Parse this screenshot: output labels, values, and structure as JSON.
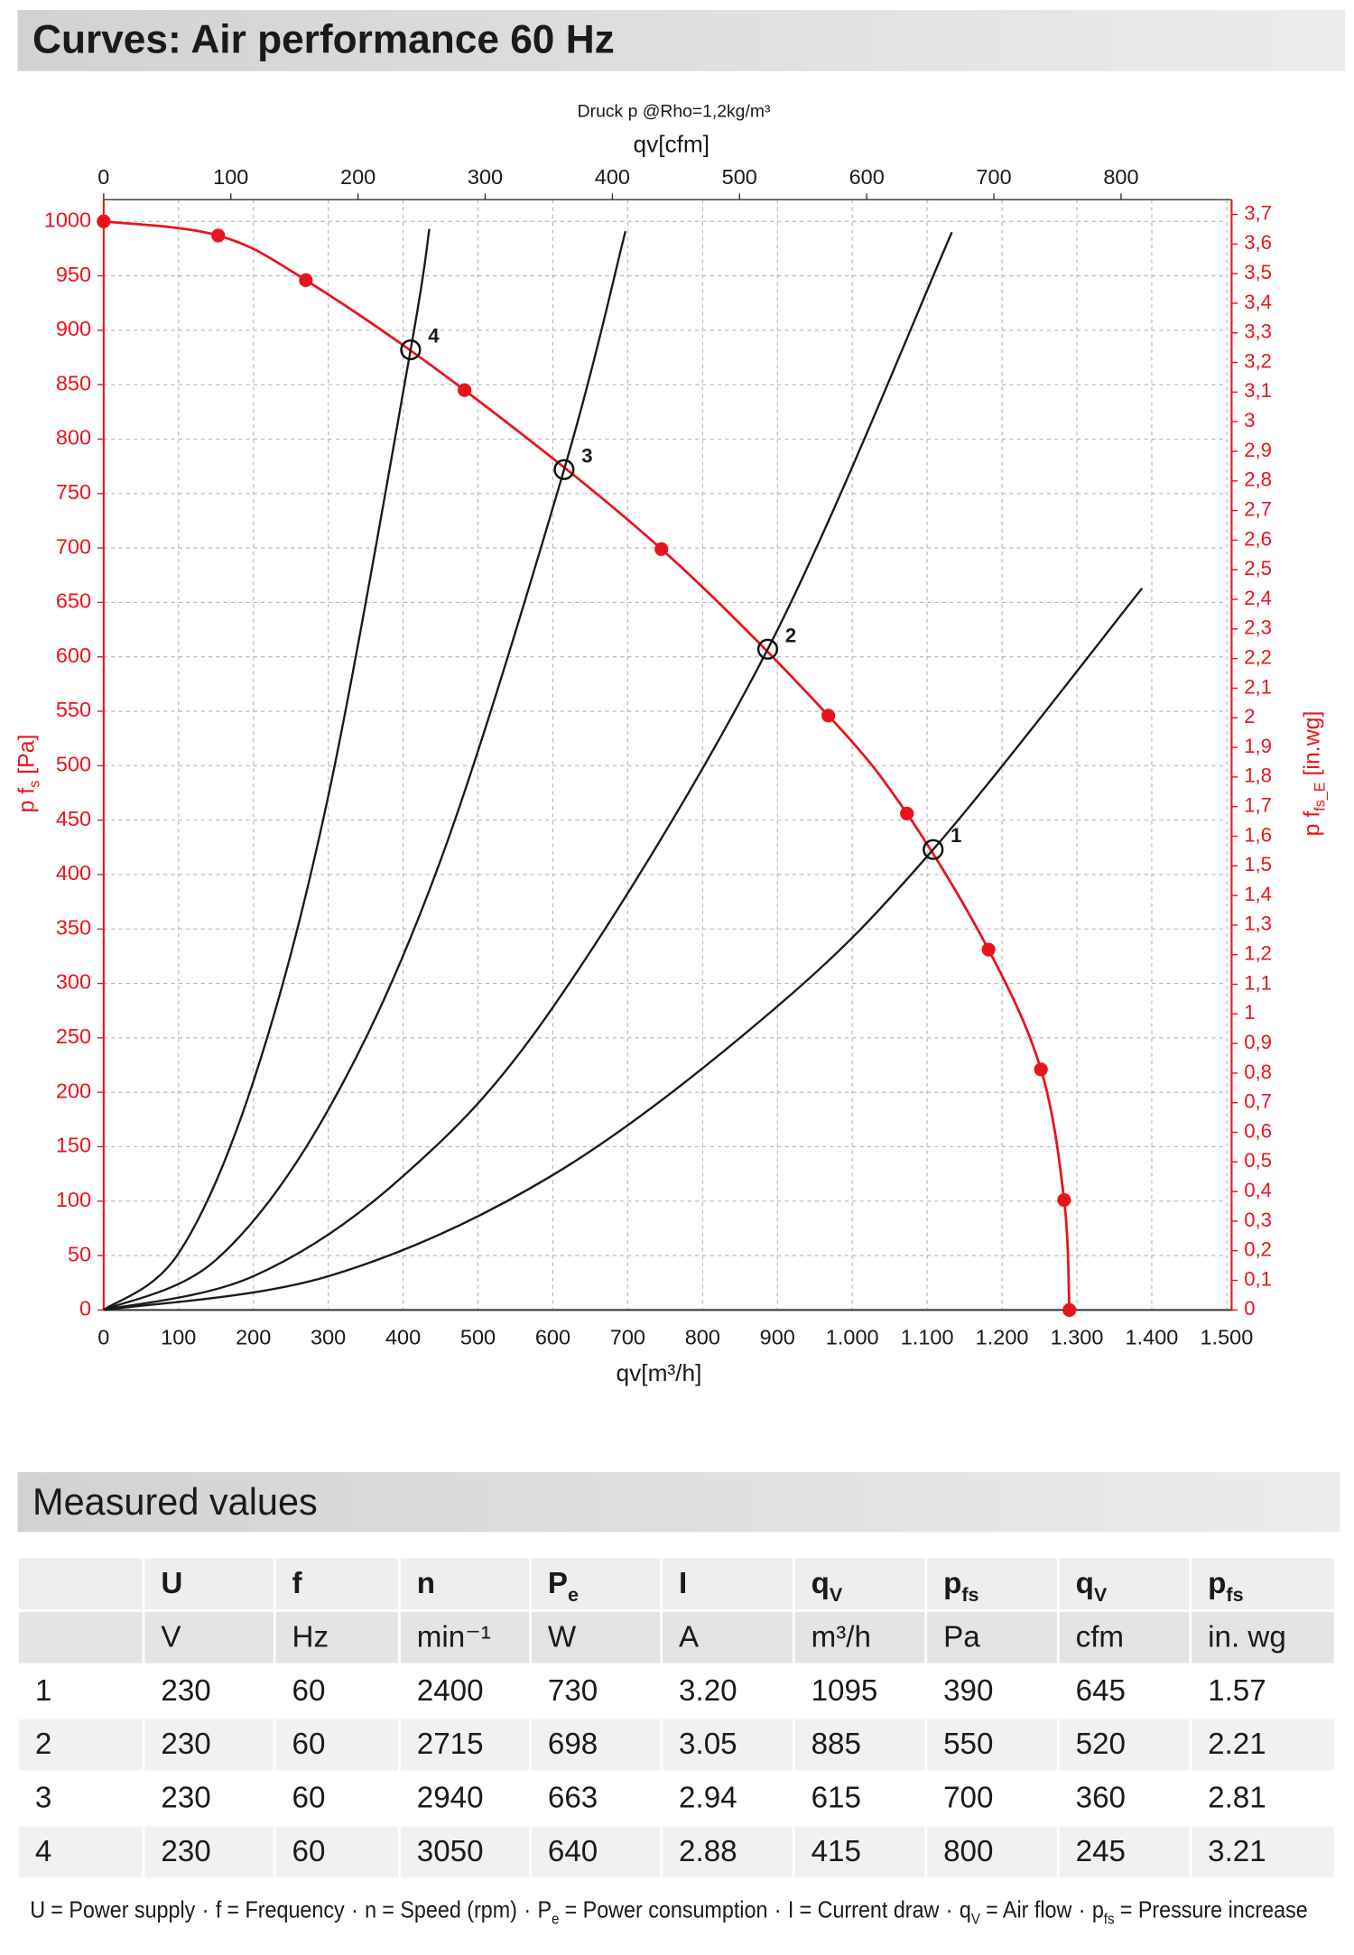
{
  "header": {
    "title": "Curves: Air performance 60 Hz"
  },
  "chart_data": {
    "type": "line",
    "top_note": "Druck  p @Rho=1,2kg/m³",
    "x_label": "qv[m³/h]",
    "x2_label": "qv[cfm]",
    "y_label": {
      "base": "p f",
      "sub": "s",
      "unit": " [Pa]"
    },
    "y2_label": {
      "base": "p f",
      "sub": "fs_E",
      "unit": " [in.wg]"
    },
    "xlim": [
      0,
      1500
    ],
    "xticks": [
      0,
      100,
      200,
      300,
      400,
      500,
      600,
      700,
      800,
      900,
      {
        "value": 1000,
        "label": "1.000"
      },
      {
        "value": 1100,
        "label": "1.100"
      },
      {
        "value": 1200,
        "label": "1.200"
      },
      {
        "value": 1300,
        "label": "1.300"
      },
      {
        "value": 1400,
        "label": "1.400"
      },
      {
        "value": 1500,
        "label": "1.500"
      }
    ],
    "x2lim": [
      0,
      883
    ],
    "x2ticks": [
      0,
      100,
      200,
      300,
      400,
      500,
      600,
      700,
      800
    ],
    "ylim": [
      0,
      1020
    ],
    "yticks": [
      0,
      50,
      100,
      150,
      200,
      250,
      300,
      350,
      400,
      450,
      500,
      550,
      600,
      650,
      700,
      750,
      800,
      850,
      900,
      950,
      1000
    ],
    "y2lim": [
      0,
      3.75
    ],
    "y2ticks": [
      0,
      {
        "value": 0.1,
        "label": "0,1"
      },
      {
        "value": 0.2,
        "label": "0,2"
      },
      {
        "value": 0.3,
        "label": "0,3"
      },
      {
        "value": 0.4,
        "label": "0,4"
      },
      {
        "value": 0.5,
        "label": "0,5"
      },
      {
        "value": 0.6,
        "label": "0,6"
      },
      {
        "value": 0.7,
        "label": "0,7"
      },
      {
        "value": 0.8,
        "label": "0,8"
      },
      {
        "value": 0.9,
        "label": "0,9"
      },
      1,
      {
        "value": 1.1,
        "label": "1,1"
      },
      {
        "value": 1.2,
        "label": "1,2"
      },
      {
        "value": 1.3,
        "label": "1,3"
      },
      {
        "value": 1.4,
        "label": "1,4"
      },
      {
        "value": 1.5,
        "label": "1,5"
      },
      {
        "value": 1.6,
        "label": "1,6"
      },
      {
        "value": 1.7,
        "label": "1,7"
      },
      {
        "value": 1.8,
        "label": "1,8"
      },
      {
        "value": 1.9,
        "label": "1,9"
      },
      2,
      {
        "value": 2.1,
        "label": "2,1"
      },
      {
        "value": 2.2,
        "label": "2,2"
      },
      {
        "value": 2.3,
        "label": "2,3"
      },
      {
        "value": 2.4,
        "label": "2,4"
      },
      {
        "value": 2.5,
        "label": "2,5"
      },
      {
        "value": 2.6,
        "label": "2,6"
      },
      {
        "value": 2.7,
        "label": "2,7"
      },
      {
        "value": 2.8,
        "label": "2,8"
      },
      {
        "value": 2.9,
        "label": "2,9"
      },
      3,
      {
        "value": 3.1,
        "label": "3,1"
      },
      {
        "value": 3.2,
        "label": "3,2"
      },
      {
        "value": 3.3,
        "label": "3,3"
      },
      {
        "value": 3.4,
        "label": "3,4"
      },
      {
        "value": 3.5,
        "label": "3,5"
      },
      {
        "value": 3.6,
        "label": "3,6"
      },
      {
        "value": 3.7,
        "label": "3,7"
      }
    ],
    "grid": true,
    "axis_color": "#e8141c",
    "series": [
      {
        "color": "#e8141c",
        "markers": true,
        "x": [
          0,
          153,
          270,
          482,
          745,
          968,
          1073,
          1182,
          1252,
          1283,
          1290
        ],
        "values": [
          1000,
          987,
          946,
          845,
          699,
          546,
          456,
          331,
          221,
          101,
          0
        ]
      },
      {
        "color": "#1a1a1a",
        "x": [
          0,
          300,
          600,
          900,
          1108,
          1387
        ],
        "values": [
          0,
          31,
          124,
          279,
          423,
          663
        ]
      },
      {
        "color": "#1a1a1a",
        "x": [
          0,
          200,
          400,
          600,
          887,
          1133
        ],
        "values": [
          0,
          31,
          123,
          278,
          607,
          990
        ]
      },
      {
        "color": "#1a1a1a",
        "x": [
          0,
          150,
          300,
          450,
          615,
          697
        ],
        "values": [
          0,
          46,
          184,
          413,
          772,
          991
        ]
      },
      {
        "color": "#1a1a1a",
        "x": [
          0,
          100,
          200,
          300,
          410,
          435
        ],
        "values": [
          0,
          52,
          210,
          472,
          882,
          993
        ]
      }
    ],
    "operating_points": [
      {
        "label": "1",
        "x": 1108,
        "y": 423
      },
      {
        "label": "2",
        "x": 887,
        "y": 607
      },
      {
        "label": "3",
        "x": 615,
        "y": 772
      },
      {
        "label": "4",
        "x": 410,
        "y": 882
      }
    ]
  },
  "section": {
    "title": "Measured values"
  },
  "table": {
    "columns": [
      {
        "symbol": {
          "base": "U"
        },
        "unit": "V"
      },
      {
        "symbol": {
          "base": "f"
        },
        "unit": "Hz"
      },
      {
        "symbol": {
          "base": "n"
        },
        "unit": "min⁻¹"
      },
      {
        "symbol": {
          "base": "P",
          "sub": "e"
        },
        "unit": "W"
      },
      {
        "symbol": {
          "base": "I"
        },
        "unit": "A"
      },
      {
        "symbol": {
          "base": "q",
          "sub": "V"
        },
        "unit": "m³/h"
      },
      {
        "symbol": {
          "base": "p",
          "sub": "fs"
        },
        "unit": "Pa"
      },
      {
        "symbol": {
          "base": "q",
          "sub": "V"
        },
        "unit": "cfm"
      },
      {
        "symbol": {
          "base": "p",
          "sub": "fs"
        },
        "unit": "in. wg"
      }
    ],
    "rows": [
      {
        "id": "1",
        "cells": [
          "230",
          "60",
          "2400",
          "730",
          "3.20",
          "1095",
          "390",
          "645",
          "1.57"
        ]
      },
      {
        "id": "2",
        "cells": [
          "230",
          "60",
          "2715",
          "698",
          "3.05",
          "885",
          "550",
          "520",
          "2.21"
        ]
      },
      {
        "id": "3",
        "cells": [
          "230",
          "60",
          "2940",
          "663",
          "2.94",
          "615",
          "700",
          "360",
          "2.81"
        ]
      },
      {
        "id": "4",
        "cells": [
          "230",
          "60",
          "3050",
          "640",
          "2.88",
          "415",
          "800",
          "245",
          "3.21"
        ]
      }
    ]
  },
  "footer": {
    "separator": "·",
    "items": [
      {
        "symbol": {
          "base": "U"
        },
        "def": "= Power supply"
      },
      {
        "symbol": {
          "base": "f"
        },
        "def": "= Frequency"
      },
      {
        "symbol": {
          "base": "n"
        },
        "def": "= Speed (rpm)"
      },
      {
        "symbol": {
          "base": "P",
          "sub": "e"
        },
        "def": "= Power consumption"
      },
      {
        "symbol": {
          "base": "I"
        },
        "def": "= Current draw"
      },
      {
        "symbol": {
          "base": "q",
          "sub": "V"
        },
        "def": "= Air flow"
      },
      {
        "symbol": {
          "base": "p",
          "sub": "fs"
        },
        "def": "= Pressure increase"
      }
    ]
  }
}
